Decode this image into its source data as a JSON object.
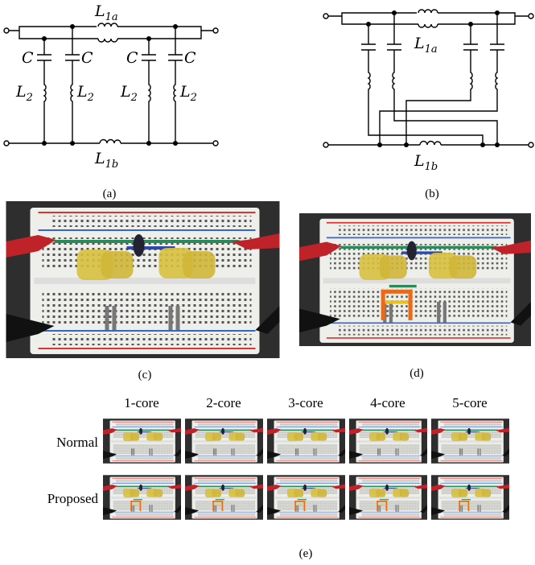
{
  "circuit_a": {
    "L1a": [
      "L",
      "1a"
    ],
    "L1b": [
      "L",
      "1b"
    ],
    "C": [
      "C",
      "C",
      "C",
      "C"
    ],
    "L2": [
      [
        "L",
        "2"
      ],
      [
        "L",
        "2"
      ],
      [
        "L",
        "2"
      ],
      [
        "L",
        "2"
      ]
    ],
    "caption": "(a)"
  },
  "circuit_b": {
    "L1a": [
      "L",
      "1a"
    ],
    "L1b": [
      "L",
      "1b"
    ],
    "caption": "(b)"
  },
  "photo_c": {
    "caption": "(c)"
  },
  "photo_d": {
    "caption": "(d)"
  },
  "grid_e": {
    "columns": [
      "1-core",
      "2-core",
      "3-core",
      "4-core",
      "5-core"
    ],
    "rows": [
      "Normal",
      "Proposed"
    ],
    "caption": "(e)"
  }
}
